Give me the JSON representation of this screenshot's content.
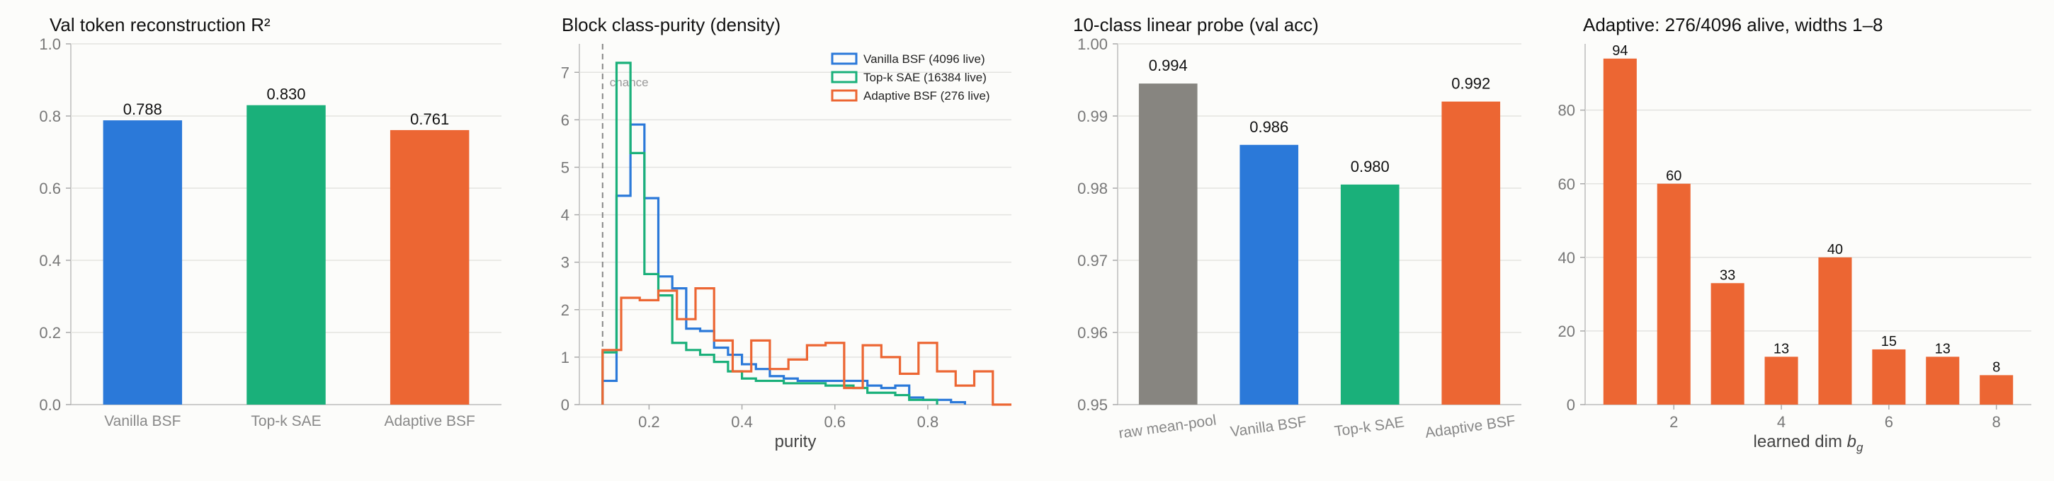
{
  "chart_data": [
    {
      "type": "bar",
      "title": "Val token reconstruction R²",
      "categories": [
        "Vanilla BSF",
        "Top-k SAE",
        "Adaptive BSF"
      ],
      "values": [
        0.788,
        0.83,
        0.761
      ],
      "value_labels": [
        "0.788",
        "0.830",
        "0.761"
      ],
      "colors": [
        "#2b79d9",
        "#1ab07a",
        "#ec6633"
      ],
      "ylim": [
        0,
        1.0
      ],
      "yticks": [
        0.0,
        0.2,
        0.4,
        0.6,
        0.8,
        1.0
      ],
      "ytick_labels": [
        "0.0",
        "0.2",
        "0.4",
        "0.6",
        "0.8",
        "1.0"
      ],
      "grid": true
    },
    {
      "type": "histogram",
      "title": "Block class-purity (density)",
      "xlabel": "purity",
      "xlim": [
        0.05,
        0.98
      ],
      "ylim": [
        0,
        7.6
      ],
      "xticks": [
        0.2,
        0.4,
        0.6,
        0.8
      ],
      "xtick_labels": [
        "0.2",
        "0.4",
        "0.6",
        "0.8"
      ],
      "yticks": [
        0,
        1,
        2,
        3,
        4,
        5,
        6,
        7
      ],
      "ytick_labels": [
        "0",
        "1",
        "2",
        "3",
        "4",
        "5",
        "6",
        "7"
      ],
      "chance_line": {
        "x": 0.1,
        "label": "chance"
      },
      "legend_position": "top-right",
      "series": [
        {
          "name": "Vanilla BSF (4096 live)",
          "color": "#2b79d9",
          "edges": [
            0.1,
            0.13,
            0.16,
            0.19,
            0.22,
            0.25,
            0.28,
            0.31,
            0.34,
            0.37,
            0.4,
            0.43,
            0.46,
            0.49,
            0.52,
            0.55,
            0.58,
            0.61,
            0.64,
            0.67,
            0.7,
            0.73,
            0.76,
            0.79,
            0.82,
            0.85,
            0.88
          ],
          "values": [
            0.5,
            4.4,
            5.9,
            4.35,
            2.7,
            2.45,
            1.6,
            1.55,
            1.2,
            1.05,
            0.85,
            0.75,
            0.6,
            0.55,
            0.5,
            0.5,
            0.5,
            0.5,
            0.5,
            0.4,
            0.35,
            0.4,
            0.15,
            0.1,
            0.1,
            0.05
          ]
        },
        {
          "name": "Top-k SAE (16384 live)",
          "color": "#1ab07a",
          "edges": [
            0.1,
            0.13,
            0.16,
            0.19,
            0.22,
            0.25,
            0.28,
            0.31,
            0.34,
            0.37,
            0.4,
            0.43,
            0.46,
            0.49,
            0.52,
            0.55,
            0.58,
            0.61,
            0.64,
            0.67,
            0.7,
            0.73,
            0.76,
            0.79,
            0.82
          ],
          "values": [
            1.1,
            7.2,
            5.3,
            2.75,
            2.3,
            1.3,
            1.15,
            1.05,
            0.9,
            0.7,
            0.55,
            0.5,
            0.5,
            0.45,
            0.45,
            0.45,
            0.4,
            0.4,
            0.35,
            0.25,
            0.25,
            0.2,
            0.1,
            0.1
          ]
        },
        {
          "name": "Adaptive BSF (276 live)",
          "color": "#ec6633",
          "edges": [
            0.1,
            0.14,
            0.18,
            0.22,
            0.26,
            0.3,
            0.34,
            0.38,
            0.42,
            0.46,
            0.5,
            0.54,
            0.58,
            0.62,
            0.66,
            0.7,
            0.74,
            0.78,
            0.82,
            0.86,
            0.9,
            0.94,
            0.98
          ],
          "values": [
            1.15,
            2.25,
            2.2,
            2.4,
            1.8,
            2.45,
            1.35,
            0.7,
            1.35,
            0.75,
            0.95,
            1.25,
            1.3,
            0.35,
            1.25,
            1.0,
            0.65,
            1.3,
            0.7,
            0.4,
            0.7,
            0.0
          ]
        }
      ]
    },
    {
      "type": "bar",
      "title": "10-class linear probe (val acc)",
      "categories": [
        "raw mean-pool",
        "Vanilla BSF",
        "Top-k SAE",
        "Adaptive BSF"
      ],
      "values": [
        0.9945,
        0.986,
        0.9805,
        0.992
      ],
      "value_labels": [
        "0.994",
        "0.986",
        "0.980",
        "0.992"
      ],
      "colors": [
        "#878580",
        "#2b79d9",
        "#1ab07a",
        "#ec6633"
      ],
      "ylim": [
        0.95,
        1.0
      ],
      "yticks": [
        0.95,
        0.96,
        0.97,
        0.98,
        0.99,
        1.0
      ],
      "ytick_labels": [
        "0.95",
        "0.96",
        "0.97",
        "0.98",
        "0.99",
        "1.00"
      ],
      "grid": true
    },
    {
      "type": "bar",
      "title": "Adaptive: 276/4096 alive, widths 1–8",
      "xlabel": "learned dim b_g",
      "xlabel_main": "learned dim ",
      "xlabel_var": "b",
      "xlabel_sub": "g",
      "x": [
        1,
        2,
        3,
        4,
        5,
        6,
        7,
        8
      ],
      "values": [
        94,
        60,
        33,
        13,
        40,
        15,
        13,
        8
      ],
      "value_labels": [
        "94",
        "60",
        "33",
        "13",
        "40",
        "15",
        "13",
        "8"
      ],
      "color": "#ec6633",
      "xticks": [
        2,
        4,
        6,
        8
      ],
      "xtick_labels": [
        "2",
        "4",
        "6",
        "8"
      ],
      "ylim": [
        0,
        98
      ],
      "yticks": [
        0,
        20,
        40,
        60,
        80
      ],
      "ytick_labels": [
        "0",
        "20",
        "40",
        "60",
        "80"
      ],
      "grid": true
    }
  ]
}
